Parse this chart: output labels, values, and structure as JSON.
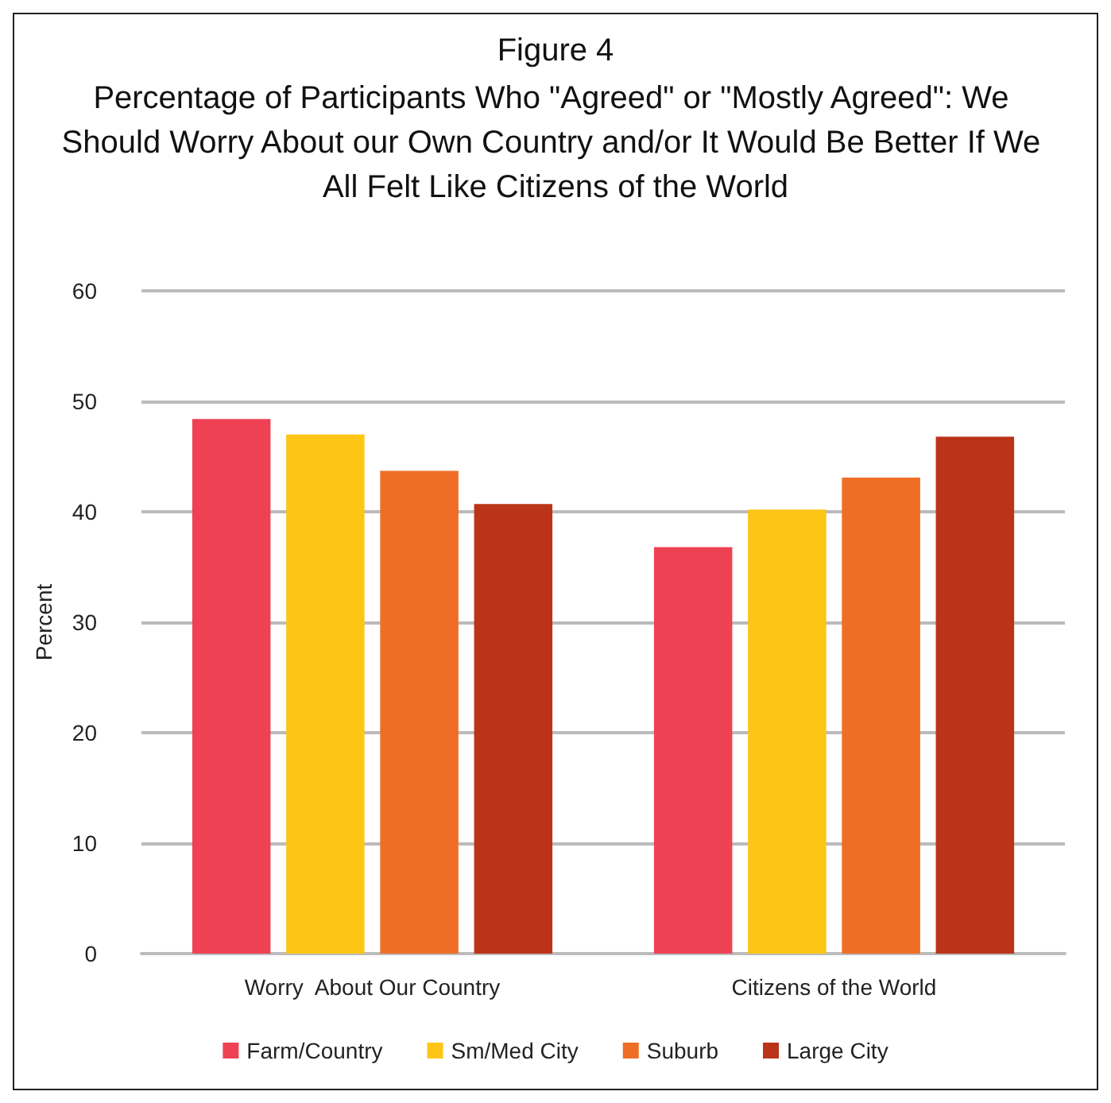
{
  "chart_data": {
    "type": "bar",
    "title": "Figure 4",
    "subtitle": "Percentage of Participants Who \"Agreed\" or \"Mostly Agreed\": We Should Worry About our Own Country and/or It Would Be Better If We All Felt Like Citizens of the World",
    "ylabel": "Percent",
    "categories": [
      "Worry  About Our Country",
      "Citizens of the World"
    ],
    "series": [
      {
        "name": "Farm/Country",
        "color": "#ee4254",
        "values": [
          48.4,
          36.8
        ]
      },
      {
        "name": "Sm/Med City",
        "color": "#fdc516",
        "values": [
          47.0,
          40.2
        ]
      },
      {
        "name": "Suburb",
        "color": "#ef6e25",
        "values": [
          43.7,
          43.1
        ]
      },
      {
        "name": "Large City",
        "color": "#bb3319",
        "values": [
          40.7,
          46.8
        ]
      }
    ],
    "ylim": [
      0,
      60
    ],
    "yticks": [
      0,
      10,
      20,
      30,
      40,
      50,
      60
    ],
    "grid": "y",
    "legend": "bottom"
  }
}
